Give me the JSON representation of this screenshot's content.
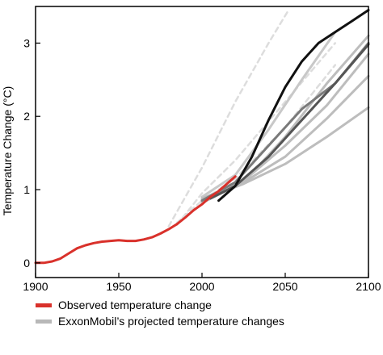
{
  "chart_data": {
    "type": "line",
    "title": "",
    "ylabel": "Temperature Change (°C)",
    "xlabel": "",
    "xlim": [
      1900,
      2100
    ],
    "ylim": [
      -0.2,
      3.5
    ],
    "x_ticks": [
      1900,
      1950,
      2000,
      2050,
      2100
    ],
    "y_ticks": [
      0,
      1,
      2,
      3
    ],
    "grid": false,
    "legend_position": "bottom",
    "legend": [
      {
        "label": "Observed temperature change",
        "color": "#d9312b"
      },
      {
        "label": "ExxonMobil’s projected temperature changes",
        "color": "#b8b8b8"
      }
    ],
    "series": [
      {
        "name": "Observed temperature change",
        "color": "#d9312b",
        "width": 3,
        "dash": false,
        "points": [
          [
            1900,
            0.0
          ],
          [
            1905,
            0.0
          ],
          [
            1910,
            0.02
          ],
          [
            1915,
            0.06
          ],
          [
            1920,
            0.13
          ],
          [
            1925,
            0.2
          ],
          [
            1930,
            0.24
          ],
          [
            1935,
            0.27
          ],
          [
            1940,
            0.29
          ],
          [
            1945,
            0.3
          ],
          [
            1950,
            0.31
          ],
          [
            1955,
            0.3
          ],
          [
            1960,
            0.3
          ],
          [
            1965,
            0.32
          ],
          [
            1970,
            0.35
          ],
          [
            1975,
            0.4
          ],
          [
            1980,
            0.46
          ],
          [
            1985,
            0.53
          ],
          [
            1990,
            0.62
          ],
          [
            1995,
            0.72
          ],
          [
            2000,
            0.8
          ],
          [
            2005,
            0.9
          ],
          [
            2010,
            0.98
          ],
          [
            2015,
            1.08
          ],
          [
            2020,
            1.18
          ]
        ]
      },
      {
        "color": "#dddddd",
        "width": 2.5,
        "dash": true,
        "points": [
          [
            1980,
            0.5
          ],
          [
            2000,
            1.3
          ],
          [
            2020,
            2.2
          ],
          [
            2040,
            3.0
          ],
          [
            2052,
            3.45
          ]
        ]
      },
      {
        "color": "#dddddd",
        "width": 2.5,
        "dash": true,
        "points": [
          [
            1985,
            0.52
          ],
          [
            2000,
            0.95
          ],
          [
            2020,
            1.4
          ],
          [
            2050,
            2.2
          ],
          [
            2080,
            3.0
          ]
        ]
      },
      {
        "color": "#dddddd",
        "width": 2.5,
        "dash": true,
        "points": [
          [
            1985,
            0.55
          ],
          [
            2000,
            0.85
          ],
          [
            2020,
            1.15
          ],
          [
            2050,
            1.85
          ],
          [
            2080,
            2.7
          ]
        ]
      },
      {
        "color": "#c8c8c8",
        "width": 3,
        "dash": false,
        "points": [
          [
            2000,
            0.9
          ],
          [
            2020,
            1.2
          ],
          [
            2040,
            1.82
          ],
          [
            2060,
            2.5
          ],
          [
            2080,
            3.15
          ]
        ]
      },
      {
        "color": "#bdbdbd",
        "width": 3,
        "dash": false,
        "points": [
          [
            2000,
            0.82
          ],
          [
            2025,
            1.1
          ],
          [
            2050,
            1.72
          ],
          [
            2075,
            2.45
          ],
          [
            2100,
            3.1
          ]
        ]
      },
      {
        "color": "#bdbdbd",
        "width": 3,
        "dash": false,
        "points": [
          [
            2000,
            0.85
          ],
          [
            2025,
            1.12
          ],
          [
            2050,
            1.6
          ],
          [
            2075,
            2.15
          ],
          [
            2100,
            2.85
          ]
        ]
      },
      {
        "color": "#bdbdbd",
        "width": 3,
        "dash": false,
        "points": [
          [
            2000,
            0.88
          ],
          [
            2025,
            1.1
          ],
          [
            2050,
            1.45
          ],
          [
            2075,
            1.97
          ],
          [
            2100,
            2.55
          ]
        ]
      },
      {
        "color": "#bdbdbd",
        "width": 3,
        "dash": false,
        "points": [
          [
            2000,
            0.86
          ],
          [
            2025,
            1.08
          ],
          [
            2050,
            1.35
          ],
          [
            2075,
            1.72
          ],
          [
            2100,
            2.12
          ]
        ]
      },
      {
        "color": "#7a7a7a",
        "width": 3,
        "dash": false,
        "points": [
          [
            2000,
            0.85
          ],
          [
            2020,
            1.1
          ],
          [
            2040,
            1.6
          ],
          [
            2060,
            2.1
          ],
          [
            2080,
            2.45
          ],
          [
            2100,
            3.0
          ]
        ]
      },
      {
        "color": "#555555",
        "width": 3,
        "dash": false,
        "points": [
          [
            2005,
            0.88
          ],
          [
            2020,
            1.05
          ],
          [
            2040,
            1.45
          ],
          [
            2060,
            1.95
          ],
          [
            2080,
            2.45
          ],
          [
            2100,
            2.98
          ]
        ]
      },
      {
        "color": "#111111",
        "width": 3,
        "dash": false,
        "points": [
          [
            2010,
            0.85
          ],
          [
            2020,
            1.05
          ],
          [
            2030,
            1.45
          ],
          [
            2040,
            1.95
          ],
          [
            2050,
            2.4
          ],
          [
            2060,
            2.75
          ],
          [
            2070,
            3.0
          ],
          [
            2080,
            3.15
          ],
          [
            2090,
            3.3
          ],
          [
            2100,
            3.45
          ]
        ]
      }
    ]
  }
}
